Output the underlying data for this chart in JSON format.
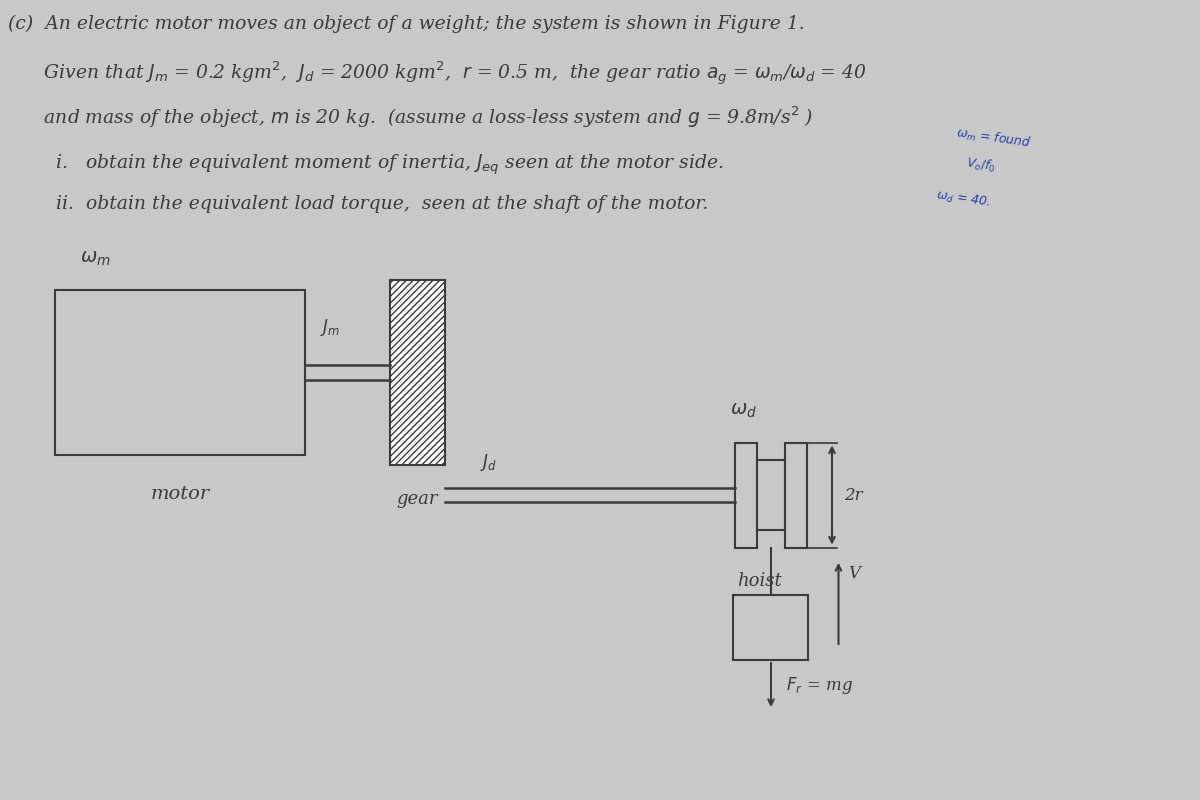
{
  "bg_color": "#c8c8c8",
  "text_color": "#3a3a3a",
  "line_color": "#3a3a3a",
  "title_line1": "(c)  An electric motor moves an object of a weight; the system is shown in Figure 1.",
  "title_line2": "      Given that $J_m$ = 0.2 kgm$^2$,  $J_d$ = 2000 kgm$^2$,  $r$ = 0.5 m,  the gear ratio $a_g$ = $\\omega_m$/$\\omega_d$ = 40",
  "title_line3": "      and mass of the object, $m$ is 20 kg.  (assume a loss-less system and $g$ = 9.8m/s$^2$ )",
  "title_line4": "        i.   obtain the equivalent moment of inertia, $J_{eq}$ seen at the motor side.",
  "title_line5": "        ii.  obtain the equivalent load torque,  seen at the shaft of the motor.",
  "label_motor": "motor",
  "label_gear": "gear",
  "label_hoist": "hoist",
  "label_Jm": "$J_m$",
  "label_Jd": "$J_d$",
  "label_omega_m": "$\\omega_m$",
  "label_omega_d": "$\\omega_d$",
  "label_2r": "2r",
  "label_V": "V",
  "label_Fr": "$F_r$ = mg",
  "hw_line1": "$\\omega_m$ = found",
  "hw_line2": "$V_o / f_0$",
  "hw_line3": "$\\omega_d$ = 40.",
  "font_size_body": 13.5,
  "diagram_bg": "#c8c8c8"
}
